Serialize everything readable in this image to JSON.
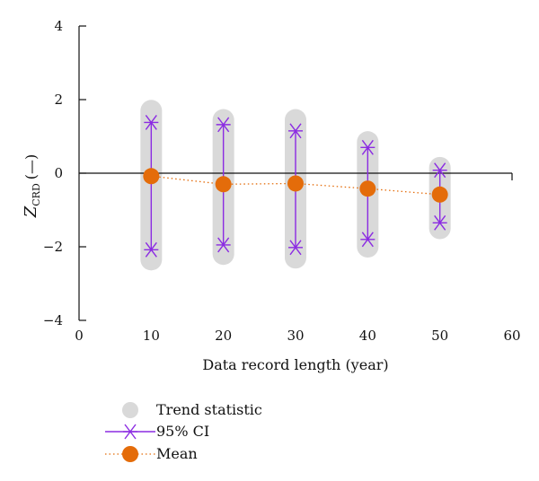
{
  "chart_data": {
    "type": "scatter",
    "xlabel": "Data record length (year)",
    "ylabel": {
      "main": "Z",
      "sub": "CRD",
      "unit": "(—)"
    },
    "xlim": [
      0,
      60
    ],
    "ylim": [
      -4,
      4
    ],
    "xticks": [
      "0",
      "10",
      "20",
      "30",
      "40",
      "50",
      "60"
    ],
    "yticks": [
      "4",
      "2",
      "0",
      "−2",
      "−4"
    ],
    "xtick_values": [
      0,
      10,
      20,
      30,
      40,
      50,
      60
    ],
    "ytick_values": [
      4,
      2,
      0,
      -2,
      -4
    ],
    "reference_line_y": 0,
    "series": [
      {
        "name": "Trend statistic",
        "kind": "range",
        "color": "#d9d9d9",
        "points": [
          {
            "x": 10,
            "ymin": -2.35,
            "ymax": 1.7
          },
          {
            "x": 20,
            "ymin": -2.2,
            "ymax": 1.45
          },
          {
            "x": 30,
            "ymin": -2.3,
            "ymax": 1.45
          },
          {
            "x": 40,
            "ymin": -2.0,
            "ymax": 0.85
          },
          {
            "x": 50,
            "ymin": -1.5,
            "ymax": 0.15
          }
        ]
      },
      {
        "name": "95% CI",
        "kind": "interval",
        "color": "#8b2be2",
        "points": [
          {
            "x": 10,
            "low": -2.08,
            "high": 1.38
          },
          {
            "x": 20,
            "low": -1.95,
            "high": 1.32
          },
          {
            "x": 30,
            "low": -2.02,
            "high": 1.15
          },
          {
            "x": 40,
            "low": -1.8,
            "high": 0.7
          },
          {
            "x": 50,
            "low": -1.35,
            "high": 0.08
          }
        ]
      },
      {
        "name": "Mean",
        "kind": "point-line",
        "color": "#e46c0a",
        "points": [
          {
            "x": 10,
            "y": -0.08
          },
          {
            "x": 20,
            "y": -0.3
          },
          {
            "x": 30,
            "y": -0.28
          },
          {
            "x": 40,
            "y": -0.42
          },
          {
            "x": 50,
            "y": -0.58
          }
        ]
      }
    ],
    "legend": {
      "position": "bottom-left",
      "entries": [
        "Trend statistic",
        "95% CI",
        "Mean"
      ]
    }
  }
}
